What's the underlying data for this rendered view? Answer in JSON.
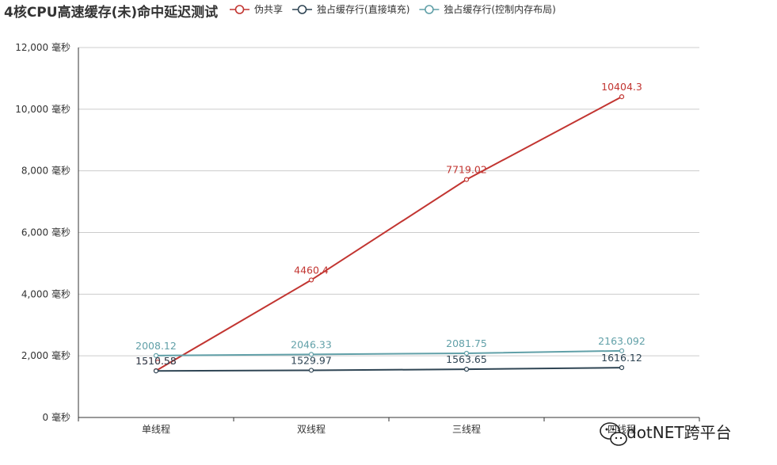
{
  "chart_data": {
    "type": "line",
    "title": "4核CPU高速缓存(未)命中延迟测试",
    "categories": [
      "单线程",
      "双线程",
      "三线程",
      "四线程"
    ],
    "ylim": [
      0,
      12000
    ],
    "yticks": [
      0,
      2000,
      4000,
      6000,
      8000,
      10000,
      12000
    ],
    "ytick_labels": [
      "0 毫秒",
      "2,000 毫秒",
      "4,000 毫秒",
      "6,000 毫秒",
      "8,000 毫秒",
      "10,000 毫秒",
      "12,000 毫秒"
    ],
    "grid": true,
    "legend_position": "top",
    "series": [
      {
        "name": "伪共享",
        "color": "#c23531",
        "values": [
          1516.53,
          4460.4,
          7719.02,
          10404.3
        ],
        "labels": [
          "1516.53",
          "4460.4",
          "7719.02",
          "10404.3"
        ]
      },
      {
        "name": "独占缓存行(直接填充)",
        "color": "#2f4554",
        "values": [
          1510.58,
          1529.97,
          1563.65,
          1616.12
        ],
        "labels": [
          "1510.58",
          "1529.97",
          "1563.65",
          "1616.12"
        ]
      },
      {
        "name": "独占缓存行(控制内存布局)",
        "color": "#61a0a8",
        "values": [
          2008.12,
          2046.33,
          2081.75,
          2163.092
        ],
        "labels": [
          "2008.12",
          "2046.33",
          "2081.75",
          "2163.092"
        ]
      }
    ]
  },
  "watermark": {
    "icon": "wechat-icon",
    "text": "dotNET跨平台"
  }
}
